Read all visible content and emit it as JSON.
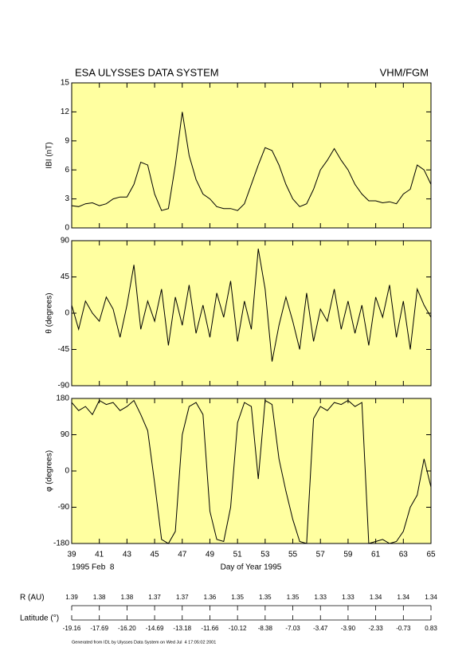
{
  "header": {
    "title": "ESA ULYSSES DATA SYSTEM",
    "instrument": "VHM/FGM",
    "date_label": "1995 Feb  8",
    "xlabel": "Day of Year 1995"
  },
  "chart_data": [
    {
      "type": "line",
      "ylabel": "IBI (nT)",
      "color": "#000000",
      "background": "#ffffa0",
      "xlim": [
        39,
        65
      ],
      "xticks": [
        39,
        41,
        43,
        45,
        47,
        49,
        51,
        53,
        55,
        57,
        59,
        61,
        63,
        65
      ],
      "ylim": [
        0,
        15
      ],
      "yticks": [
        0,
        3,
        6,
        9,
        12,
        15
      ],
      "x": [
        39,
        39.5,
        40,
        40.5,
        41,
        41.5,
        42,
        42.5,
        43,
        43.5,
        44,
        44.5,
        45,
        45.5,
        46,
        46.5,
        47,
        47.5,
        48,
        48.5,
        49,
        49.5,
        50,
        50.5,
        51,
        51.5,
        52,
        52.5,
        53,
        53.5,
        54,
        54.5,
        55,
        55.5,
        56,
        56.5,
        57,
        57.5,
        58,
        58.5,
        59,
        59.5,
        60,
        60.5,
        61,
        61.5,
        62,
        62.5,
        63,
        63.5,
        64,
        64.5,
        65
      ],
      "values": [
        2.3,
        2.2,
        2.5,
        2.6,
        2.3,
        2.5,
        3.0,
        3.2,
        3.2,
        4.5,
        6.8,
        6.5,
        3.5,
        1.8,
        2.0,
        6.5,
        12.0,
        7.5,
        5.0,
        3.5,
        3.0,
        2.2,
        2.0,
        2.0,
        1.8,
        2.5,
        4.5,
        6.5,
        8.3,
        8.0,
        6.5,
        4.5,
        3.0,
        2.2,
        2.5,
        4.0,
        6.0,
        7.0,
        8.2,
        7.0,
        6.0,
        4.5,
        3.5,
        2.8,
        2.8,
        2.6,
        2.7,
        2.5,
        3.5,
        4.0,
        6.5,
        6.0,
        4.5
      ]
    },
    {
      "type": "line",
      "ylabel": "θ (degrees)",
      "color": "#000000",
      "background": "#ffffa0",
      "xlim": [
        39,
        65
      ],
      "xticks": [
        39,
        41,
        43,
        45,
        47,
        49,
        51,
        53,
        55,
        57,
        59,
        61,
        63,
        65
      ],
      "ylim": [
        -90,
        90
      ],
      "yticks": [
        -90,
        -45,
        0,
        45,
        90
      ],
      "x": [
        39,
        39.5,
        40,
        40.5,
        41,
        41.5,
        42,
        42.5,
        43,
        43.5,
        44,
        44.5,
        45,
        45.5,
        46,
        46.5,
        47,
        47.5,
        48,
        48.5,
        49,
        49.5,
        50,
        50.5,
        51,
        51.5,
        52,
        52.5,
        53,
        53.5,
        54,
        54.5,
        55,
        55.5,
        56,
        56.5,
        57,
        57.5,
        58,
        58.5,
        59,
        59.5,
        60,
        60.5,
        61,
        61.5,
        62,
        62.5,
        63,
        63.5,
        64,
        64.5,
        65
      ],
      "values": [
        10,
        -20,
        15,
        0,
        -10,
        20,
        5,
        -30,
        10,
        60,
        -20,
        15,
        -10,
        30,
        -40,
        20,
        -15,
        35,
        -25,
        10,
        -30,
        25,
        -5,
        40,
        -35,
        15,
        -20,
        80,
        30,
        -60,
        -15,
        20,
        -10,
        -45,
        25,
        -35,
        5,
        -10,
        30,
        -20,
        15,
        -25,
        10,
        -40,
        20,
        -5,
        35,
        -30,
        15,
        -45,
        30,
        10,
        -5
      ]
    },
    {
      "type": "line",
      "ylabel": "φ (degrees)",
      "color": "#000000",
      "background": "#ffffa0",
      "xlim": [
        39,
        65
      ],
      "xticks": [
        39,
        41,
        43,
        45,
        47,
        49,
        51,
        53,
        55,
        57,
        59,
        61,
        63,
        65
      ],
      "ylim": [
        -180,
        180
      ],
      "yticks": [
        -180,
        -90,
        0,
        90,
        180
      ],
      "x": [
        39,
        39.5,
        40,
        40.5,
        41,
        41.5,
        42,
        42.5,
        43,
        43.5,
        44,
        44.5,
        45,
        45.5,
        46,
        46.5,
        47,
        47.5,
        48,
        48.5,
        49,
        49.5,
        50,
        50.5,
        51,
        51.5,
        52,
        52.5,
        53,
        53.5,
        54,
        54.5,
        55,
        55.5,
        56,
        56.5,
        57,
        57.5,
        58,
        58.5,
        59,
        59.5,
        60,
        60.5,
        61,
        61.5,
        62,
        62.5,
        63,
        63.5,
        64,
        64.5,
        65
      ],
      "values": [
        170,
        150,
        160,
        140,
        175,
        165,
        170,
        150,
        160,
        175,
        140,
        100,
        -30,
        -170,
        -180,
        -150,
        90,
        160,
        170,
        140,
        -100,
        -170,
        -175,
        -90,
        120,
        170,
        160,
        -20,
        175,
        165,
        30,
        -50,
        -120,
        -175,
        -180,
        130,
        160,
        150,
        170,
        165,
        175,
        160,
        170,
        -180,
        -175,
        -170,
        -180,
        -175,
        -150,
        -90,
        -60,
        30,
        -40
      ]
    }
  ],
  "ephemeris": {
    "r_label": "R (AU)",
    "r_values": [
      "1.39",
      "1.38",
      "1.38",
      "1.37",
      "1.37",
      "1.36",
      "1.35",
      "1.35",
      "1.35",
      "1.33",
      "1.33",
      "1.34",
      "1.34",
      "1.34"
    ],
    "lat_label": "Latitude (°)",
    "lat_values": [
      "-19.16",
      "-17.69",
      "-16.20",
      "-14.69",
      "-13.18",
      "-11.66",
      "-10.12",
      "-8.38",
      "-7.03",
      "-3.47",
      "-3.90",
      "-2.33",
      "-0.73",
      "0.83"
    ]
  },
  "footer": "Generated from IDL by Ulysses Data System on Wed Jul  4 17:05:02 2001"
}
